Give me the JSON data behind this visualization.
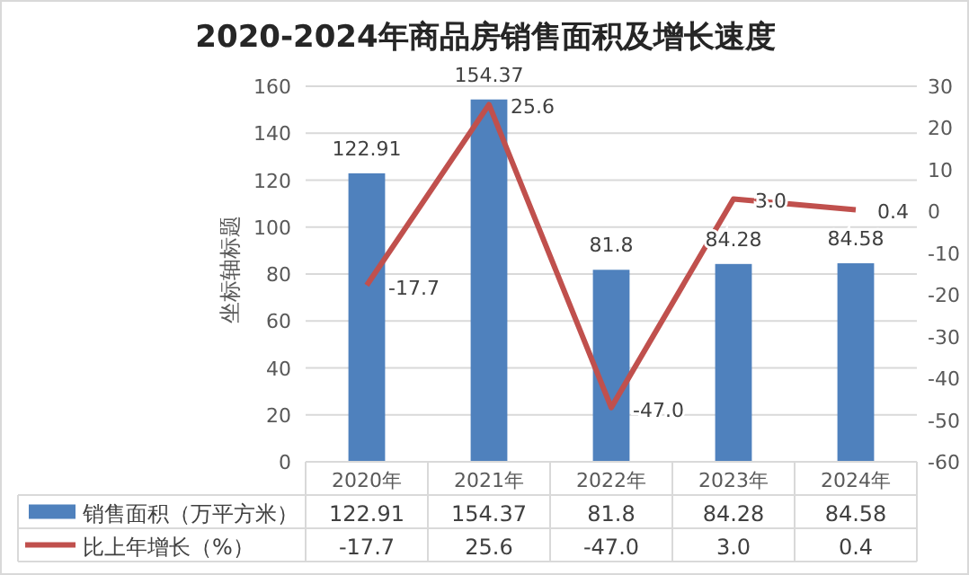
{
  "chart_data": {
    "type": "bar",
    "title": "2020-2024年商品房销售面积及增长速度",
    "ylabel": "坐标轴标题",
    "categories": [
      "2020年",
      "2021年",
      "2022年",
      "2023年",
      "2024年"
    ],
    "series": [
      {
        "name": "销售面积（万平方米）",
        "color": "#4f81bd",
        "values": [
          122.91,
          154.37,
          81.8,
          84.28,
          84.58
        ],
        "value_labels": [
          "122.91",
          "154.37",
          "81.8",
          "84.28",
          "84.58"
        ]
      },
      {
        "name": "比上年增长（%）",
        "type": "line",
        "axis": "y2",
        "color": "#c0504d",
        "values": [
          -17.7,
          25.6,
          -47.0,
          3.0,
          0.4
        ],
        "value_labels": [
          "-17.7",
          "25.6",
          "-47.0",
          "3.0",
          "0.4"
        ]
      }
    ],
    "ylim": [
      0,
      160
    ],
    "yticks": [
      0,
      20,
      40,
      60,
      80,
      100,
      120,
      140,
      160
    ],
    "y2lim": [
      -60,
      30
    ],
    "y2ticks": [
      -60,
      -50,
      -40,
      -30,
      -20,
      -10,
      0,
      10,
      20,
      30
    ],
    "grid": "y",
    "legend": "bottom",
    "marker": "none",
    "line_style": "solid"
  }
}
